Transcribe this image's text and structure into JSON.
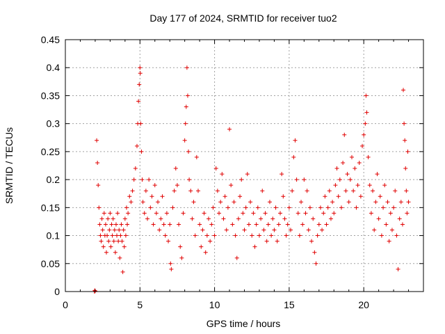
{
  "chart_data": {
    "type": "scatter",
    "title": "Day 177 of 2024, SRMTID for receiver tuo2",
    "xlabel": "GPS time / hours",
    "ylabel": "SRMTID / TECUs",
    "xlim": [
      0,
      24
    ],
    "ylim": [
      0,
      0.45
    ],
    "xticks": [
      0,
      5,
      10,
      15,
      20
    ],
    "yticks": [
      0,
      0.05,
      0.1,
      0.15,
      0.2,
      0.25,
      0.3,
      0.35,
      0.4,
      0.45
    ],
    "ytick_labels": [
      "0",
      "0.05",
      "0.1",
      "0.15",
      "0.2",
      "0.25",
      "0.3",
      "0.35",
      "0.4",
      "0.45"
    ],
    "grid": true,
    "marker": "+",
    "color": "#e00000",
    "series": [
      {
        "name": "SRMTID",
        "points": [
          [
            1.95,
            0.0
          ],
          [
            1.97,
            0.002
          ],
          [
            2.0,
            0.001
          ],
          [
            2.1,
            0.27
          ],
          [
            2.15,
            0.23
          ],
          [
            2.2,
            0.19
          ],
          [
            2.25,
            0.15
          ],
          [
            2.3,
            0.12
          ],
          [
            2.35,
            0.1
          ],
          [
            2.4,
            0.09
          ],
          [
            2.45,
            0.13
          ],
          [
            2.5,
            0.11
          ],
          [
            2.55,
            0.08
          ],
          [
            2.6,
            0.14
          ],
          [
            2.65,
            0.1
          ],
          [
            2.7,
            0.12
          ],
          [
            2.75,
            0.07
          ],
          [
            2.8,
            0.1
          ],
          [
            2.85,
            0.13
          ],
          [
            2.9,
            0.09
          ],
          [
            2.95,
            0.11
          ],
          [
            3.0,
            0.14
          ],
          [
            3.05,
            0.08
          ],
          [
            3.1,
            0.12
          ],
          [
            3.15,
            0.1
          ],
          [
            3.2,
            0.13
          ],
          [
            3.25,
            0.09
          ],
          [
            3.3,
            0.11
          ],
          [
            3.35,
            0.07
          ],
          [
            3.4,
            0.12
          ],
          [
            3.45,
            0.1
          ],
          [
            3.5,
            0.14
          ],
          [
            3.55,
            0.09
          ],
          [
            3.6,
            0.11
          ],
          [
            3.65,
            0.06
          ],
          [
            3.7,
            0.1
          ],
          [
            3.75,
            0.12
          ],
          [
            3.8,
            0.09
          ],
          [
            3.85,
            0.035
          ],
          [
            3.9,
            0.11
          ],
          [
            3.95,
            0.08
          ],
          [
            4.0,
            0.13
          ],
          [
            4.05,
            0.1
          ],
          [
            4.1,
            0.15
          ],
          [
            4.15,
            0.12
          ],
          [
            4.2,
            0.14
          ],
          [
            4.3,
            0.17
          ],
          [
            4.4,
            0.16
          ],
          [
            4.5,
            0.18
          ],
          [
            4.6,
            0.2
          ],
          [
            4.7,
            0.22
          ],
          [
            4.8,
            0.26
          ],
          [
            4.85,
            0.3
          ],
          [
            4.9,
            0.34
          ],
          [
            4.95,
            0.37
          ],
          [
            5.0,
            0.4
          ],
          [
            5.02,
            0.39
          ],
          [
            5.05,
            0.3
          ],
          [
            5.1,
            0.25
          ],
          [
            5.15,
            0.2
          ],
          [
            5.2,
            0.16
          ],
          [
            5.3,
            0.14
          ],
          [
            5.4,
            0.18
          ],
          [
            5.5,
            0.13
          ],
          [
            5.6,
            0.2
          ],
          [
            5.7,
            0.15
          ],
          [
            5.8,
            0.17
          ],
          [
            5.9,
            0.12
          ],
          [
            6.0,
            0.19
          ],
          [
            6.1,
            0.14
          ],
          [
            6.2,
            0.16
          ],
          [
            6.3,
            0.11
          ],
          [
            6.4,
            0.13
          ],
          [
            6.5,
            0.17
          ],
          [
            6.6,
            0.12
          ],
          [
            6.7,
            0.1
          ],
          [
            6.8,
            0.14
          ],
          [
            6.9,
            0.09
          ],
          [
            7.0,
            0.12
          ],
          [
            7.05,
            0.05
          ],
          [
            7.1,
            0.04
          ],
          [
            7.2,
            0.15
          ],
          [
            7.3,
            0.18
          ],
          [
            7.4,
            0.22
          ],
          [
            7.5,
            0.19
          ],
          [
            7.6,
            0.12
          ],
          [
            7.7,
            0.08
          ],
          [
            7.8,
            0.06
          ],
          [
            7.9,
            0.14
          ],
          [
            8.0,
            0.27
          ],
          [
            8.05,
            0.3
          ],
          [
            8.1,
            0.33
          ],
          [
            8.15,
            0.4
          ],
          [
            8.2,
            0.35
          ],
          [
            8.25,
            0.25
          ],
          [
            8.3,
            0.2
          ],
          [
            8.4,
            0.18
          ],
          [
            8.5,
            0.13
          ],
          [
            8.6,
            0.16
          ],
          [
            8.7,
            0.1
          ],
          [
            8.8,
            0.24
          ],
          [
            8.9,
            0.18
          ],
          [
            9.0,
            0.12
          ],
          [
            9.1,
            0.08
          ],
          [
            9.2,
            0.11
          ],
          [
            9.3,
            0.14
          ],
          [
            9.4,
            0.07
          ],
          [
            9.5,
            0.1
          ],
          [
            9.6,
            0.13
          ],
          [
            9.7,
            0.09
          ],
          [
            9.8,
            0.12
          ],
          [
            9.9,
            0.15
          ],
          [
            10.0,
            0.1
          ],
          [
            10.1,
            0.22
          ],
          [
            10.2,
            0.18
          ],
          [
            10.3,
            0.14
          ],
          [
            10.4,
            0.16
          ],
          [
            10.5,
            0.21
          ],
          [
            10.6,
            0.13
          ],
          [
            10.7,
            0.17
          ],
          [
            10.8,
            0.11
          ],
          [
            10.9,
            0.15
          ],
          [
            11.0,
            0.29
          ],
          [
            11.1,
            0.19
          ],
          [
            11.2,
            0.12
          ],
          [
            11.3,
            0.16
          ],
          [
            11.4,
            0.1
          ],
          [
            11.5,
            0.06
          ],
          [
            11.6,
            0.13
          ],
          [
            11.7,
            0.17
          ],
          [
            11.8,
            0.2
          ],
          [
            11.9,
            0.14
          ],
          [
            12.0,
            0.11
          ],
          [
            12.1,
            0.15
          ],
          [
            12.2,
            0.21
          ],
          [
            12.3,
            0.12
          ],
          [
            12.4,
            0.16
          ],
          [
            12.5,
            0.1
          ],
          [
            12.6,
            0.14
          ],
          [
            12.7,
            0.08
          ],
          [
            12.8,
            0.12
          ],
          [
            12.9,
            0.15
          ],
          [
            13.0,
            0.1
          ],
          [
            13.1,
            0.13
          ],
          [
            13.2,
            0.18
          ],
          [
            13.3,
            0.11
          ],
          [
            13.4,
            0.14
          ],
          [
            13.5,
            0.09
          ],
          [
            13.6,
            0.12
          ],
          [
            13.7,
            0.16
          ],
          [
            13.8,
            0.1
          ],
          [
            13.9,
            0.13
          ],
          [
            14.0,
            0.11
          ],
          [
            14.1,
            0.15
          ],
          [
            14.2,
            0.09
          ],
          [
            14.3,
            0.12
          ],
          [
            14.4,
            0.14
          ],
          [
            14.5,
            0.21
          ],
          [
            14.6,
            0.17
          ],
          [
            14.7,
            0.13
          ],
          [
            14.8,
            0.1
          ],
          [
            14.9,
            0.12
          ],
          [
            15.0,
            0.15
          ],
          [
            15.1,
            0.11
          ],
          [
            15.2,
            0.18
          ],
          [
            15.3,
            0.24
          ],
          [
            15.4,
            0.27
          ],
          [
            15.5,
            0.2
          ],
          [
            15.6,
            0.14
          ],
          [
            15.7,
            0.1
          ],
          [
            15.8,
            0.16
          ],
          [
            15.9,
            0.12
          ],
          [
            16.0,
            0.2
          ],
          [
            16.1,
            0.14
          ],
          [
            16.2,
            0.18
          ],
          [
            16.3,
            0.11
          ],
          [
            16.4,
            0.15
          ],
          [
            16.5,
            0.09
          ],
          [
            16.6,
            0.13
          ],
          [
            16.7,
            0.07
          ],
          [
            16.8,
            0.05
          ],
          [
            16.9,
            0.1
          ],
          [
            17.0,
            0.12
          ],
          [
            17.1,
            0.15
          ],
          [
            17.2,
            0.11
          ],
          [
            17.3,
            0.14
          ],
          [
            17.4,
            0.17
          ],
          [
            17.5,
            0.12
          ],
          [
            17.6,
            0.15
          ],
          [
            17.7,
            0.18
          ],
          [
            17.8,
            0.13
          ],
          [
            17.9,
            0.16
          ],
          [
            18.0,
            0.14
          ],
          [
            18.1,
            0.19
          ],
          [
            18.2,
            0.22
          ],
          [
            18.3,
            0.17
          ],
          [
            18.4,
            0.2
          ],
          [
            18.5,
            0.15
          ],
          [
            18.6,
            0.23
          ],
          [
            18.7,
            0.28
          ],
          [
            18.8,
            0.18
          ],
          [
            18.9,
            0.21
          ],
          [
            19.0,
            0.16
          ],
          [
            19.1,
            0.2
          ],
          [
            19.2,
            0.24
          ],
          [
            19.3,
            0.18
          ],
          [
            19.4,
            0.22
          ],
          [
            19.5,
            0.15
          ],
          [
            19.6,
            0.19
          ],
          [
            19.7,
            0.23
          ],
          [
            19.8,
            0.17
          ],
          [
            19.9,
            0.26
          ],
          [
            20.0,
            0.28
          ],
          [
            20.1,
            0.3
          ],
          [
            20.15,
            0.35
          ],
          [
            20.2,
            0.32
          ],
          [
            20.3,
            0.24
          ],
          [
            20.4,
            0.19
          ],
          [
            20.5,
            0.14
          ],
          [
            20.6,
            0.18
          ],
          [
            20.7,
            0.11
          ],
          [
            20.8,
            0.16
          ],
          [
            20.9,
            0.21
          ],
          [
            21.0,
            0.13
          ],
          [
            21.1,
            0.17
          ],
          [
            21.2,
            0.1
          ],
          [
            21.3,
            0.15
          ],
          [
            21.4,
            0.19
          ],
          [
            21.5,
            0.12
          ],
          [
            21.6,
            0.16
          ],
          [
            21.7,
            0.09
          ],
          [
            21.8,
            0.14
          ],
          [
            21.9,
            0.11
          ],
          [
            22.0,
            0.15
          ],
          [
            22.1,
            0.18
          ],
          [
            22.2,
            0.1
          ],
          [
            22.3,
            0.04
          ],
          [
            22.4,
            0.13
          ],
          [
            22.5,
            0.16
          ],
          [
            22.6,
            0.12
          ],
          [
            22.65,
            0.36
          ],
          [
            22.7,
            0.3
          ],
          [
            22.75,
            0.27
          ],
          [
            22.8,
            0.22
          ],
          [
            22.85,
            0.18
          ],
          [
            22.9,
            0.14
          ],
          [
            22.95,
            0.25
          ],
          [
            23.0,
            0.16
          ]
        ]
      }
    ]
  }
}
